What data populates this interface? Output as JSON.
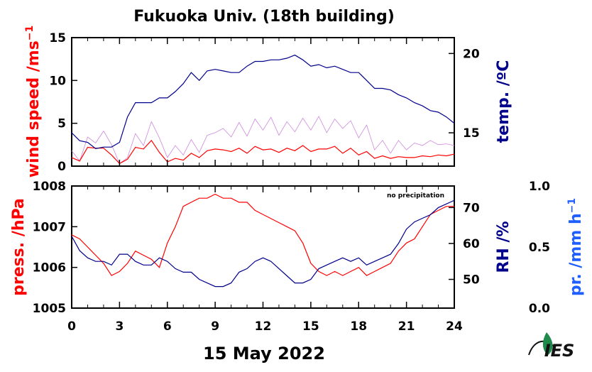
{
  "chart_data": {
    "title": "Fukuoka Univ. (18th building)",
    "xlabel": "15 May 2022",
    "x_ticks": [
      "0",
      "3",
      "6",
      "9",
      "12",
      "15",
      "18",
      "21",
      "24"
    ],
    "xlim": [
      0,
      24
    ],
    "panels": [
      {
        "type": "line",
        "left_axis": {
          "label": "wind speed /ms",
          "label_superscript": "−1",
          "color": "#ff0000",
          "ylim": [
            0,
            15
          ],
          "ticks": [
            "0",
            "5",
            "10",
            "15"
          ]
        },
        "right_axis": {
          "label": "temp. /ºC",
          "color": "#00008b",
          "ylim": [
            12.9,
            21.0
          ],
          "ticks": [
            "15",
            "20"
          ]
        },
        "series": [
          {
            "axis": "left",
            "color": "#cc88dd",
            "x": [
              0,
              0.5,
              1,
              1.5,
              2,
              2.5,
              3,
              3.5,
              4,
              4.5,
              5,
              5.5,
              6,
              6.5,
              7,
              7.5,
              8,
              8.5,
              9,
              9.5,
              10,
              10.5,
              11,
              11.5,
              12,
              12.5,
              13,
              13.5,
              14,
              14.5,
              15,
              15.5,
              16,
              16.5,
              17,
              17.5,
              18,
              18.5,
              19,
              19.5,
              20,
              20.5,
              21,
              21.5,
              22,
              22.5,
              23,
              23.5,
              24
            ],
            "values": [
              1.8,
              0.6,
              3.4,
              2.7,
              4.1,
              2.5,
              0.3,
              1.0,
              3.8,
              2.4,
              5.2,
              3.3,
              1.0,
              2.4,
              1.3,
              3.1,
              1.6,
              3.6,
              3.9,
              4.4,
              3.4,
              5.1,
              3.5,
              5.5,
              4.2,
              5.7,
              3.6,
              5.2,
              4.0,
              5.6,
              4.2,
              5.8,
              3.9,
              5.5,
              4.4,
              5.3,
              3.3,
              4.8,
              1.9,
              3.0,
              1.5,
              3.0,
              1.9,
              2.7,
              2.4,
              3.0,
              2.5,
              2.6,
              2.4
            ]
          },
          {
            "axis": "left",
            "color": "#ff0000",
            "x": [
              0,
              0.5,
              1,
              1.5,
              2,
              2.5,
              3,
              3.5,
              4,
              4.5,
              5,
              5.5,
              6,
              6.5,
              7,
              7.5,
              8,
              8.5,
              9,
              9.5,
              10,
              10.5,
              11,
              11.5,
              12,
              12.5,
              13,
              13.5,
              14,
              14.5,
              15,
              15.5,
              16,
              16.5,
              17,
              17.5,
              18,
              18.5,
              19,
              19.5,
              20,
              20.5,
              21,
              21.5,
              22,
              22.5,
              23,
              23.5,
              24
            ],
            "values": [
              1.0,
              0.6,
              2.2,
              2.1,
              2.1,
              1.3,
              0.3,
              0.8,
              2.2,
              2.0,
              3.0,
              1.6,
              0.5,
              0.9,
              0.7,
              1.5,
              1.0,
              1.8,
              2.0,
              1.9,
              1.7,
              2.1,
              1.5,
              2.3,
              1.9,
              2.0,
              1.6,
              2.1,
              1.8,
              2.4,
              1.7,
              2.0,
              2.0,
              2.3,
              1.5,
              2.1,
              1.3,
              1.7,
              0.9,
              1.2,
              0.9,
              1.1,
              1.0,
              1.0,
              1.2,
              1.1,
              1.3,
              1.2,
              1.4
            ]
          },
          {
            "axis": "right",
            "color": "#00008b",
            "x": [
              0,
              0.5,
              1,
              1.5,
              2,
              2.5,
              3,
              3.5,
              4,
              4.5,
              5,
              5.5,
              6,
              6.5,
              7,
              7.5,
              8,
              8.5,
              9,
              9.5,
              10,
              10.5,
              11,
              11.5,
              12,
              12.5,
              13,
              13.5,
              14,
              14.5,
              15,
              15.5,
              16,
              16.5,
              17,
              17.5,
              18,
              18.5,
              19,
              19.5,
              20,
              20.5,
              21,
              21.5,
              22,
              22.5,
              23,
              23.5,
              24
            ],
            "values": [
              15.0,
              14.5,
              14.4,
              14.0,
              14.1,
              14.1,
              14.4,
              16.0,
              16.9,
              16.9,
              16.9,
              17.2,
              17.2,
              17.6,
              18.1,
              18.8,
              18.3,
              18.9,
              19.0,
              18.9,
              18.8,
              18.8,
              19.2,
              19.5,
              19.5,
              19.6,
              19.6,
              19.7,
              19.9,
              19.6,
              19.2,
              19.3,
              19.1,
              19.2,
              19.0,
              18.8,
              18.8,
              18.3,
              17.8,
              17.8,
              17.7,
              17.4,
              17.2,
              16.9,
              16.7,
              16.4,
              16.3,
              16.0,
              15.6
            ]
          }
        ]
      },
      {
        "type": "line",
        "left_axis": {
          "label": "press. /hPa",
          "color": "#ff0000",
          "ylim": [
            1005,
            1008
          ],
          "ticks": [
            "1005",
            "1006",
            "1007",
            "1008"
          ]
        },
        "right_axis": {
          "label": "RH /%",
          "color": "#00008b",
          "ylim": [
            42,
            76
          ],
          "ticks": [
            "50",
            "60",
            "70"
          ]
        },
        "outer_axis": {
          "label": "pr. /mm h",
          "label_superscript": "−1",
          "color": "#1f5fff",
          "ylim": [
            0,
            1.0
          ],
          "ticks": [
            "0.0",
            "0.5",
            "1.0"
          ]
        },
        "annotation": "no precipitation",
        "series": [
          {
            "axis": "left",
            "color": "#ff0000",
            "x": [
              0,
              0.5,
              1,
              1.5,
              2,
              2.5,
              3,
              3.5,
              4,
              4.5,
              5,
              5.5,
              6,
              6.5,
              7,
              7.5,
              8,
              8.5,
              9,
              9.5,
              10,
              10.5,
              11,
              11.5,
              12,
              12.5,
              13,
              13.5,
              14,
              14.5,
              15,
              15.5,
              16,
              16.5,
              17,
              17.5,
              18,
              18.5,
              19,
              19.5,
              20,
              20.5,
              21,
              21.5,
              22,
              22.5,
              23,
              23.5,
              24
            ],
            "values": [
              1006.8,
              1006.7,
              1006.5,
              1006.3,
              1006.1,
              1005.8,
              1005.9,
              1006.1,
              1006.4,
              1006.3,
              1006.2,
              1006.0,
              1006.6,
              1007.0,
              1007.5,
              1007.6,
              1007.7,
              1007.7,
              1007.8,
              1007.7,
              1007.7,
              1007.6,
              1007.6,
              1007.4,
              1007.3,
              1007.2,
              1007.1,
              1007.0,
              1006.9,
              1006.6,
              1006.1,
              1005.9,
              1005.8,
              1005.9,
              1005.8,
              1005.9,
              1006.0,
              1005.8,
              1005.9,
              1006.0,
              1006.1,
              1006.4,
              1006.6,
              1006.7,
              1007.0,
              1007.3,
              1007.4,
              1007.5,
              1007.5
            ]
          },
          {
            "axis": "right",
            "color": "#00008b",
            "x": [
              0,
              0.5,
              1,
              1.5,
              2,
              2.5,
              3,
              3.5,
              4,
              4.5,
              5,
              5.5,
              6,
              6.5,
              7,
              7.5,
              8,
              8.5,
              9,
              9.5,
              10,
              10.5,
              11,
              11.5,
              12,
              12.5,
              13,
              13.5,
              14,
              14.5,
              15,
              15.5,
              16,
              16.5,
              17,
              17.5,
              18,
              18.5,
              19,
              19.5,
              20,
              20.5,
              21,
              21.5,
              22,
              22.5,
              23,
              23.5,
              24
            ],
            "values": [
              62,
              58,
              56,
              55,
              55,
              54,
              57,
              57,
              55,
              54,
              54,
              56,
              55,
              53,
              52,
              52,
              50,
              49,
              48,
              48,
              49,
              52,
              53,
              55,
              56,
              55,
              53,
              51,
              49,
              49,
              50,
              53,
              54,
              55,
              56,
              55,
              56,
              54,
              55,
              56,
              57,
              60,
              64,
              66,
              67,
              68,
              70,
              71,
              72
            ]
          }
        ]
      }
    ]
  },
  "footer": {
    "logo_text": "IES"
  }
}
